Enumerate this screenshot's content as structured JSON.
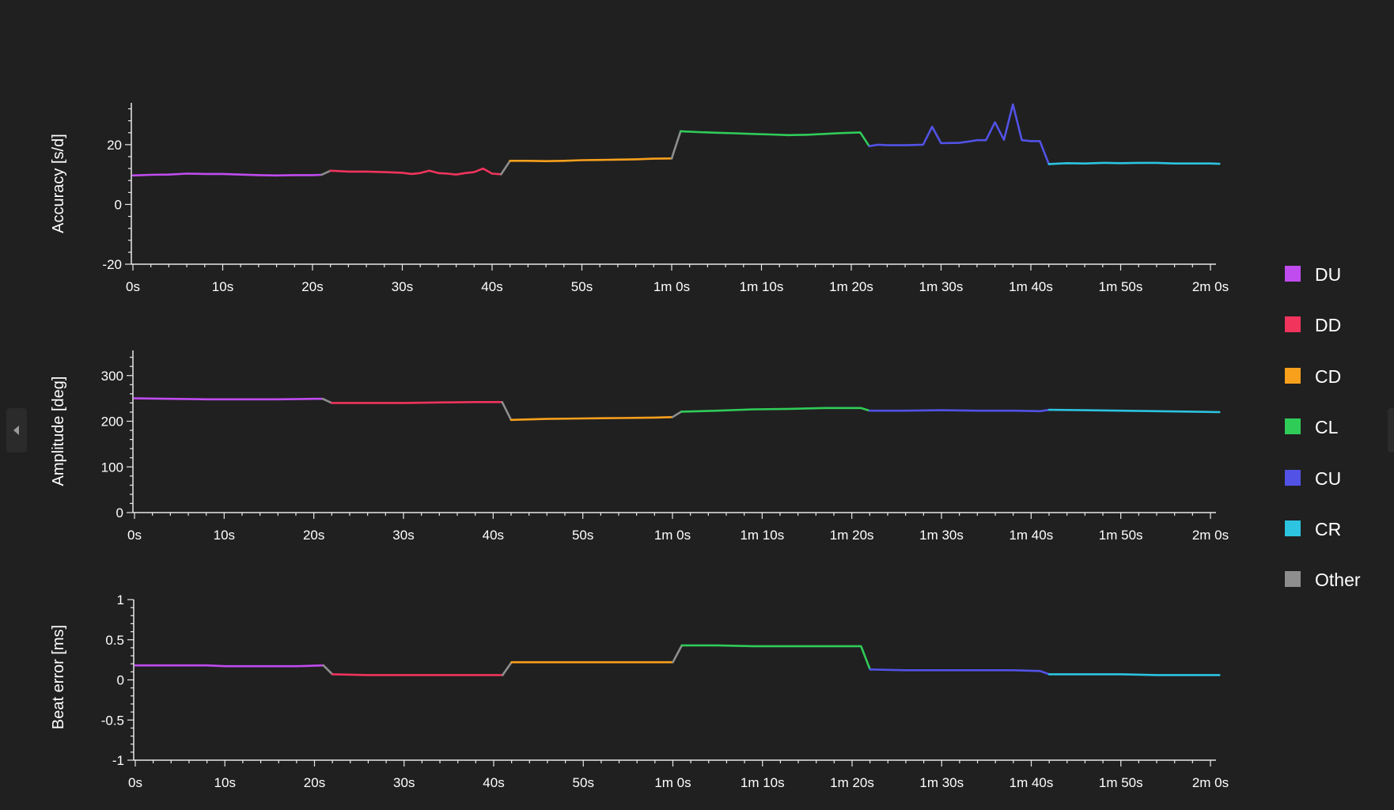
{
  "legend": {
    "items": [
      {
        "label": "DU",
        "color": "#c04cf0"
      },
      {
        "label": "DD",
        "color": "#f0345c"
      },
      {
        "label": "CD",
        "color": "#f8a01c"
      },
      {
        "label": "CL",
        "color": "#30cc58"
      },
      {
        "label": "CU",
        "color": "#5252e6"
      },
      {
        "label": "CR",
        "color": "#2cc4e0"
      },
      {
        "label": "Other",
        "color": "#8e8e8e"
      }
    ]
  },
  "chart_data": [
    {
      "type": "line",
      "title": "",
      "xlabel": "",
      "ylabel": "Accuracy [s/d]",
      "xlim": [
        0,
        121
      ],
      "ylim": [
        -20,
        34
      ],
      "x_tick_values": [
        0,
        10,
        20,
        30,
        40,
        50,
        60,
        70,
        80,
        90,
        100,
        110,
        120
      ],
      "x_tick_labels": [
        "0s",
        "10s",
        "20s",
        "30s",
        "40s",
        "50s",
        "1m 0s",
        "1m 10s",
        "1m 20s",
        "1m 30s",
        "1m 40s",
        "1m 50s",
        "2m 0s"
      ],
      "y_tick_values": [
        -20,
        0,
        20
      ],
      "y_tick_labels": [
        "-20",
        "0",
        "20"
      ],
      "grid": false,
      "legend_position": "right",
      "segments": [
        {
          "name": "DU",
          "points": [
            [
              0,
              9.7
            ],
            [
              2,
              9.9
            ],
            [
              4,
              10.0
            ],
            [
              6,
              10.3
            ],
            [
              8,
              10.2
            ],
            [
              10,
              10.2
            ],
            [
              12,
              10.0
            ],
            [
              14,
              9.8
            ],
            [
              16,
              9.7
            ],
            [
              18,
              9.8
            ],
            [
              20,
              9.8
            ],
            [
              21,
              9.9
            ]
          ]
        },
        {
          "name": "Other",
          "points": [
            [
              21,
              9.9
            ],
            [
              22,
              11.3
            ]
          ]
        },
        {
          "name": "DD",
          "points": [
            [
              22,
              11.3
            ],
            [
              24,
              11.0
            ],
            [
              26,
              11.0
            ],
            [
              28,
              10.8
            ],
            [
              30,
              10.6
            ],
            [
              31,
              10.2
            ],
            [
              32,
              10.5
            ],
            [
              33,
              11.3
            ],
            [
              34,
              10.5
            ],
            [
              35,
              10.3
            ],
            [
              36,
              10.0
            ],
            [
              37,
              10.5
            ],
            [
              38,
              10.8
            ],
            [
              39,
              12.0
            ],
            [
              40,
              10.3
            ],
            [
              41,
              10.1
            ]
          ]
        },
        {
          "name": "Other",
          "points": [
            [
              41,
              10.1
            ],
            [
              42,
              14.6
            ]
          ]
        },
        {
          "name": "CD",
          "points": [
            [
              42,
              14.6
            ],
            [
              44,
              14.6
            ],
            [
              46,
              14.5
            ],
            [
              48,
              14.6
            ],
            [
              50,
              14.8
            ],
            [
              52,
              14.9
            ],
            [
              54,
              15.0
            ],
            [
              56,
              15.1
            ],
            [
              58,
              15.3
            ],
            [
              60,
              15.4
            ]
          ]
        },
        {
          "name": "Other",
          "points": [
            [
              60,
              15.4
            ],
            [
              61,
              24.5
            ]
          ]
        },
        {
          "name": "CL",
          "points": [
            [
              61,
              24.5
            ],
            [
              63,
              24.2
            ],
            [
              65,
              24.0
            ],
            [
              67,
              23.8
            ],
            [
              69,
              23.6
            ],
            [
              71,
              23.4
            ],
            [
              73,
              23.2
            ],
            [
              75,
              23.3
            ],
            [
              77,
              23.6
            ],
            [
              79,
              23.9
            ],
            [
              81,
              24.1
            ],
            [
              82,
              19.5
            ]
          ]
        },
        {
          "name": "CU",
          "points": [
            [
              82,
              19.5
            ],
            [
              83,
              20.0
            ],
            [
              84,
              19.8
            ],
            [
              86,
              19.8
            ],
            [
              88,
              20.0
            ],
            [
              89,
              26.0
            ],
            [
              90,
              20.5
            ],
            [
              92,
              20.6
            ],
            [
              93,
              21.0
            ],
            [
              94,
              21.5
            ],
            [
              95,
              21.5
            ],
            [
              96,
              27.5
            ],
            [
              97,
              21.6
            ],
            [
              98,
              33.5
            ],
            [
              99,
              21.5
            ],
            [
              100,
              21.2
            ],
            [
              101,
              21.2
            ],
            [
              102,
              13.5
            ]
          ]
        },
        {
          "name": "CR",
          "points": [
            [
              102,
              13.5
            ],
            [
              104,
              13.8
            ],
            [
              106,
              13.7
            ],
            [
              108,
              13.9
            ],
            [
              110,
              13.8
            ],
            [
              112,
              13.9
            ],
            [
              114,
              13.9
            ],
            [
              116,
              13.7
            ],
            [
              118,
              13.7
            ],
            [
              120,
              13.7
            ],
            [
              121,
              13.6
            ]
          ]
        }
      ]
    },
    {
      "type": "line",
      "title": "",
      "xlabel": "",
      "ylabel": "Amplitude [deg]",
      "xlim": [
        0,
        121
      ],
      "ylim": [
        0,
        355
      ],
      "x_tick_values": [
        0,
        10,
        20,
        30,
        40,
        50,
        60,
        70,
        80,
        90,
        100,
        110,
        120
      ],
      "x_tick_labels": [
        "0s",
        "10s",
        "20s",
        "30s",
        "40s",
        "50s",
        "1m 0s",
        "1m 10s",
        "1m 20s",
        "1m 30s",
        "1m 40s",
        "1m 50s",
        "2m 0s"
      ],
      "y_tick_values": [
        0,
        100,
        200,
        300
      ],
      "y_tick_labels": [
        "0",
        "100",
        "200",
        "300"
      ],
      "grid": false,
      "legend_position": "right",
      "segments": [
        {
          "name": "DU",
          "points": [
            [
              0,
              250
            ],
            [
              4,
              249
            ],
            [
              8,
              248
            ],
            [
              12,
              248
            ],
            [
              16,
              248
            ],
            [
              20,
              249
            ],
            [
              21,
              249
            ]
          ]
        },
        {
          "name": "Other",
          "points": [
            [
              21,
              249
            ],
            [
              22,
              240
            ]
          ]
        },
        {
          "name": "DD",
          "points": [
            [
              22,
              240
            ],
            [
              26,
              240
            ],
            [
              30,
              240
            ],
            [
              34,
              241
            ],
            [
              38,
              242
            ],
            [
              41,
              242
            ]
          ]
        },
        {
          "name": "Other",
          "points": [
            [
              41,
              242
            ],
            [
              42,
              203
            ]
          ]
        },
        {
          "name": "CD",
          "points": [
            [
              42,
              203
            ],
            [
              46,
              205
            ],
            [
              50,
              206
            ],
            [
              54,
              207
            ],
            [
              58,
              208
            ],
            [
              60,
              209
            ]
          ]
        },
        {
          "name": "Other",
          "points": [
            [
              60,
              209
            ],
            [
              61,
              221
            ]
          ]
        },
        {
          "name": "CL",
          "points": [
            [
              61,
              221
            ],
            [
              65,
              223
            ],
            [
              69,
              226
            ],
            [
              73,
              227
            ],
            [
              77,
              229
            ],
            [
              81,
              229
            ],
            [
              82,
              223
            ]
          ]
        },
        {
          "name": "CU",
          "points": [
            [
              82,
              223
            ],
            [
              86,
              223
            ],
            [
              90,
              224
            ],
            [
              94,
              223
            ],
            [
              98,
              223
            ],
            [
              101,
              222
            ],
            [
              102,
              225
            ]
          ]
        },
        {
          "name": "CR",
          "points": [
            [
              102,
              225
            ],
            [
              106,
              224
            ],
            [
              110,
              223
            ],
            [
              114,
              222
            ],
            [
              118,
              221
            ],
            [
              121,
              220
            ]
          ]
        }
      ]
    },
    {
      "type": "line",
      "title": "",
      "xlabel": "",
      "ylabel": "Beat error [ms]",
      "xlim": [
        0,
        121
      ],
      "ylim": [
        -1,
        1
      ],
      "x_tick_values": [
        0,
        10,
        20,
        30,
        40,
        50,
        60,
        70,
        80,
        90,
        100,
        110,
        120
      ],
      "x_tick_labels": [
        "0s",
        "10s",
        "20s",
        "30s",
        "40s",
        "50s",
        "1m 0s",
        "1m 10s",
        "1m 20s",
        "1m 30s",
        "1m 40s",
        "1m 50s",
        "2m 0s"
      ],
      "y_tick_values": [
        -1,
        -0.5,
        0,
        0.5,
        1
      ],
      "y_tick_labels": [
        "-1",
        "-0.5",
        "0",
        "0.5",
        "1"
      ],
      "grid": false,
      "legend_position": "right",
      "segments": [
        {
          "name": "DU",
          "points": [
            [
              0,
              0.18
            ],
            [
              4,
              0.18
            ],
            [
              8,
              0.18
            ],
            [
              10,
              0.17
            ],
            [
              14,
              0.17
            ],
            [
              18,
              0.17
            ],
            [
              21,
              0.18
            ]
          ]
        },
        {
          "name": "Other",
          "points": [
            [
              21,
              0.18
            ],
            [
              22,
              0.07
            ]
          ]
        },
        {
          "name": "DD",
          "points": [
            [
              22,
              0.07
            ],
            [
              26,
              0.06
            ],
            [
              30,
              0.06
            ],
            [
              34,
              0.06
            ],
            [
              38,
              0.06
            ],
            [
              41,
              0.06
            ]
          ]
        },
        {
          "name": "Other",
          "points": [
            [
              41,
              0.06
            ],
            [
              42,
              0.22
            ]
          ]
        },
        {
          "name": "CD",
          "points": [
            [
              42,
              0.22
            ],
            [
              46,
              0.22
            ],
            [
              50,
              0.22
            ],
            [
              54,
              0.22
            ],
            [
              58,
              0.22
            ],
            [
              60,
              0.22
            ]
          ]
        },
        {
          "name": "Other",
          "points": [
            [
              60,
              0.22
            ],
            [
              61,
              0.43
            ]
          ]
        },
        {
          "name": "CL",
          "points": [
            [
              61,
              0.43
            ],
            [
              65,
              0.43
            ],
            [
              69,
              0.42
            ],
            [
              73,
              0.42
            ],
            [
              77,
              0.42
            ],
            [
              81,
              0.42
            ],
            [
              82,
              0.13
            ]
          ]
        },
        {
          "name": "CU",
          "points": [
            [
              82,
              0.13
            ],
            [
              86,
              0.12
            ],
            [
              90,
              0.12
            ],
            [
              94,
              0.12
            ],
            [
              98,
              0.12
            ],
            [
              101,
              0.11
            ],
            [
              102,
              0.07
            ]
          ]
        },
        {
          "name": "CR",
          "points": [
            [
              102,
              0.07
            ],
            [
              106,
              0.07
            ],
            [
              110,
              0.07
            ],
            [
              114,
              0.06
            ],
            [
              118,
              0.06
            ],
            [
              121,
              0.06
            ]
          ]
        }
      ]
    }
  ]
}
